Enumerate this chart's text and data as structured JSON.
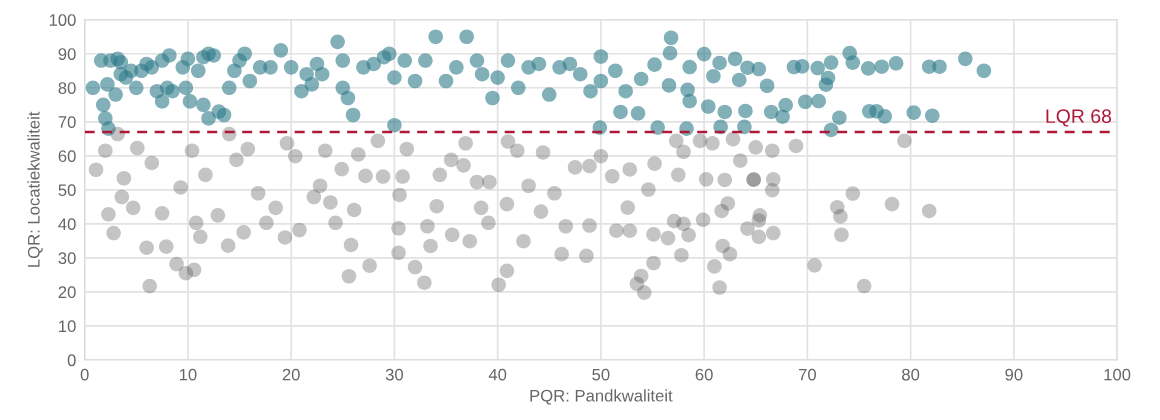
{
  "chart_data": {
    "type": "scatter",
    "xlabel": "PQR: Pandkwaliteit",
    "ylabel": "LQR: Locatiekwaliteit",
    "xlim": [
      0,
      100
    ],
    "xticks": [
      0,
      10,
      20,
      30,
      40,
      50,
      60,
      70,
      80,
      90,
      100
    ],
    "ylim": [
      0,
      100
    ],
    "yticks": [
      0,
      10,
      20,
      30,
      40,
      50,
      60,
      70,
      80,
      90,
      100
    ],
    "grid": true,
    "marker": "circle",
    "legend": false,
    "ref_lines": [
      {
        "axis": "y",
        "value": 67,
        "label": "LQR 68",
        "color": "#b0183a",
        "line_style": "dashed"
      }
    ],
    "series": [
      {
        "color": "#2e7b8a",
        "x": [
          0.8,
          1.6,
          2.2,
          2.5,
          3.2,
          3.5,
          1.8,
          2,
          2.3,
          3,
          3.5,
          4,
          4.5,
          5,
          5.5,
          6,
          6.5,
          7,
          7.5,
          8,
          8.5,
          7.5,
          8.2,
          9.5,
          10,
          9.8,
          10.2,
          11,
          11.5,
          12,
          12.5,
          11.5,
          12,
          13,
          13.5,
          14,
          14.5,
          15,
          15.5,
          16,
          17,
          18,
          19,
          20,
          21,
          21.5,
          22,
          22.5,
          23,
          24.5,
          25,
          25,
          25.5,
          26,
          27,
          28,
          29,
          29.5,
          30,
          30,
          31,
          32,
          33,
          34,
          35,
          36,
          37,
          38,
          38.5,
          39.5,
          40,
          41,
          42,
          43,
          44,
          45,
          46,
          47,
          48,
          49,
          50,
          56.8,
          56.7,
          60,
          74.1,
          85.3,
          87.1,
          82.8,
          81.8,
          78.6,
          77.2,
          75.9,
          74.4,
          72.3,
          71,
          69.5,
          68.7,
          72,
          71.8,
          71.1,
          69.8,
          67.9,
          66.5,
          67.6,
          72.3,
          73.1,
          76,
          76.7,
          77.5,
          80.3,
          82.1,
          66.1,
          63.4,
          65.3,
          64.2,
          63,
          61.5,
          58.6,
          60.9,
          58.4,
          58.6,
          60.4,
          62,
          64,
          63.9,
          61.6,
          58.3,
          55.5,
          53.6,
          52.4,
          51.4,
          50,
          53.9,
          55.2,
          56.6,
          51.9,
          49.9
        ],
        "values": [
          80,
          88,
          81,
          88,
          88.5,
          87.5,
          75,
          71,
          68,
          78,
          84,
          83,
          85,
          80,
          85,
          87,
          86,
          79,
          76,
          80,
          79,
          88,
          89.5,
          86,
          88.5,
          80,
          76,
          85,
          89,
          90,
          89.5,
          75,
          71,
          73,
          72,
          80,
          85,
          88,
          90,
          82,
          86,
          86,
          91,
          86,
          79,
          84,
          81,
          87,
          84,
          93.5,
          88,
          80,
          77,
          72,
          86,
          87,
          89,
          90,
          83,
          69,
          88,
          82,
          88,
          95,
          82,
          86,
          95,
          88,
          84,
          77,
          83,
          88,
          80,
          86,
          87,
          78,
          86,
          87,
          84,
          79,
          82,
          94.7,
          90.2,
          89.9,
          90.2,
          88.5,
          85,
          86.2,
          86.2,
          87.2,
          86.2,
          85.7,
          87.4,
          87.4,
          85.8,
          86.3,
          86.1,
          82.9,
          80.9,
          76.1,
          75.9,
          74.9,
          72.9,
          71.5,
          67.6,
          71.2,
          73.1,
          73.1,
          71.6,
          72.7,
          71.8,
          80.6,
          82.3,
          85.5,
          85.9,
          88.5,
          87.3,
          86.1,
          83.4,
          79.4,
          76.1,
          74.5,
          72.9,
          73.2,
          68.5,
          68.5,
          68,
          68.3,
          72.5,
          79,
          85,
          89.2,
          82.6,
          86.8,
          80.7,
          72.9,
          68.3
        ]
      },
      {
        "color": "#555555",
        "x": [
          79.4,
          74.4,
          78.2,
          81.8,
          72.9,
          73.2,
          73.3,
          70.7,
          75.5,
          68.9,
          66.6,
          65,
          66.7,
          66.6,
          64.8,
          65.4,
          65.3,
          64.2,
          65.3,
          66.7,
          63.5,
          62.8,
          62,
          62.3,
          61.7,
          61.8,
          62.5,
          61,
          61.5,
          59.9,
          58.5,
          57.8,
          58,
          57.1,
          56.5,
          55.1,
          53.9,
          53.5,
          54.2,
          55.1,
          52.8,
          51.5,
          48.9,
          48.6,
          51.1,
          60.2,
          64.8,
          57.3,
          58,
          59.6,
          60.8,
          55.2,
          57.5,
          52.8,
          50,
          48.9,
          52.6,
          54.6,
          1.1,
          2,
          2.3,
          2.8,
          3.6,
          3.8,
          3.2,
          5.1,
          4.7,
          6,
          6.3,
          7.9,
          8.9,
          9.8,
          10.6,
          10.4,
          9.3,
          6.5,
          7.5,
          10.8,
          11.2,
          11.7,
          12.9,
          13.9,
          14.7,
          14,
          15.8,
          16.8,
          15.4,
          17.6,
          18.5,
          19.6,
          19.4,
          20.4,
          20.8,
          22.2,
          22.8,
          23.3,
          23.8,
          24.3,
          25.6,
          25.8,
          26.1,
          24.9,
          26.5,
          27.2,
          27.6,
          28.4,
          28.9,
          30.5,
          30.4,
          30.4,
          30.8,
          31.2,
          32,
          32.9,
          33.2,
          33.5,
          34.1,
          34.4,
          35.5,
          35.6,
          36.7,
          37.3,
          36.9,
          38,
          38.4,
          39.1,
          39.2,
          40.1,
          40.9,
          41,
          40.9,
          41.9,
          42.5,
          43,
          44.2,
          44.4,
          45.5,
          46.2,
          46.6,
          47.5
        ],
        "values": [
          64.4,
          48.9,
          45.8,
          43.8,
          44.9,
          42.2,
          36.8,
          27.8,
          21.7,
          62.9,
          61.5,
          62.5,
          53.1,
          49.9,
          53,
          42.5,
          41,
          38.6,
          36.2,
          37.3,
          58.6,
          64.9,
          52.9,
          46,
          43.8,
          33.5,
          31.1,
          27.5,
          21.3,
          41.2,
          36.7,
          30.8,
          40,
          40.8,
          35.8,
          28.5,
          24.7,
          22.4,
          19.8,
          36.9,
          38,
          38,
          39.5,
          30.6,
          54,
          53.1,
          53,
          64.4,
          61.2,
          64.4,
          63.7,
          57.7,
          54.4,
          56,
          59.9,
          57,
          44.8,
          50.1,
          55.9,
          61.5,
          42.8,
          37.3,
          47.9,
          53.4,
          66.4,
          62.3,
          44.7,
          33,
          21.7,
          33.3,
          28.2,
          25.5,
          26.5,
          61.5,
          50.7,
          57.9,
          43.1,
          40.3,
          36.2,
          54.4,
          42.5,
          33.6,
          58.8,
          66.4,
          62,
          49,
          37.5,
          40.3,
          44.7,
          63.7,
          36,
          59.9,
          38.2,
          47.9,
          51.2,
          61.5,
          46.3,
          40.3,
          24.6,
          33.8,
          44.1,
          56.1,
          60.4,
          54.1,
          27.7,
          64.4,
          53.9,
          48.5,
          38.7,
          31.5,
          53.9,
          62,
          27.3,
          22.7,
          39.3,
          33.5,
          45.2,
          54.4,
          58.8,
          36.8,
          57.2,
          34.9,
          63.7,
          52.3,
          44.7,
          40.3,
          52.3,
          22.1,
          26.2,
          64.2,
          45.8,
          61.5,
          34.9,
          51.2,
          43.6,
          61,
          49,
          31.1,
          39.3,
          56.6
        ]
      }
    ]
  }
}
